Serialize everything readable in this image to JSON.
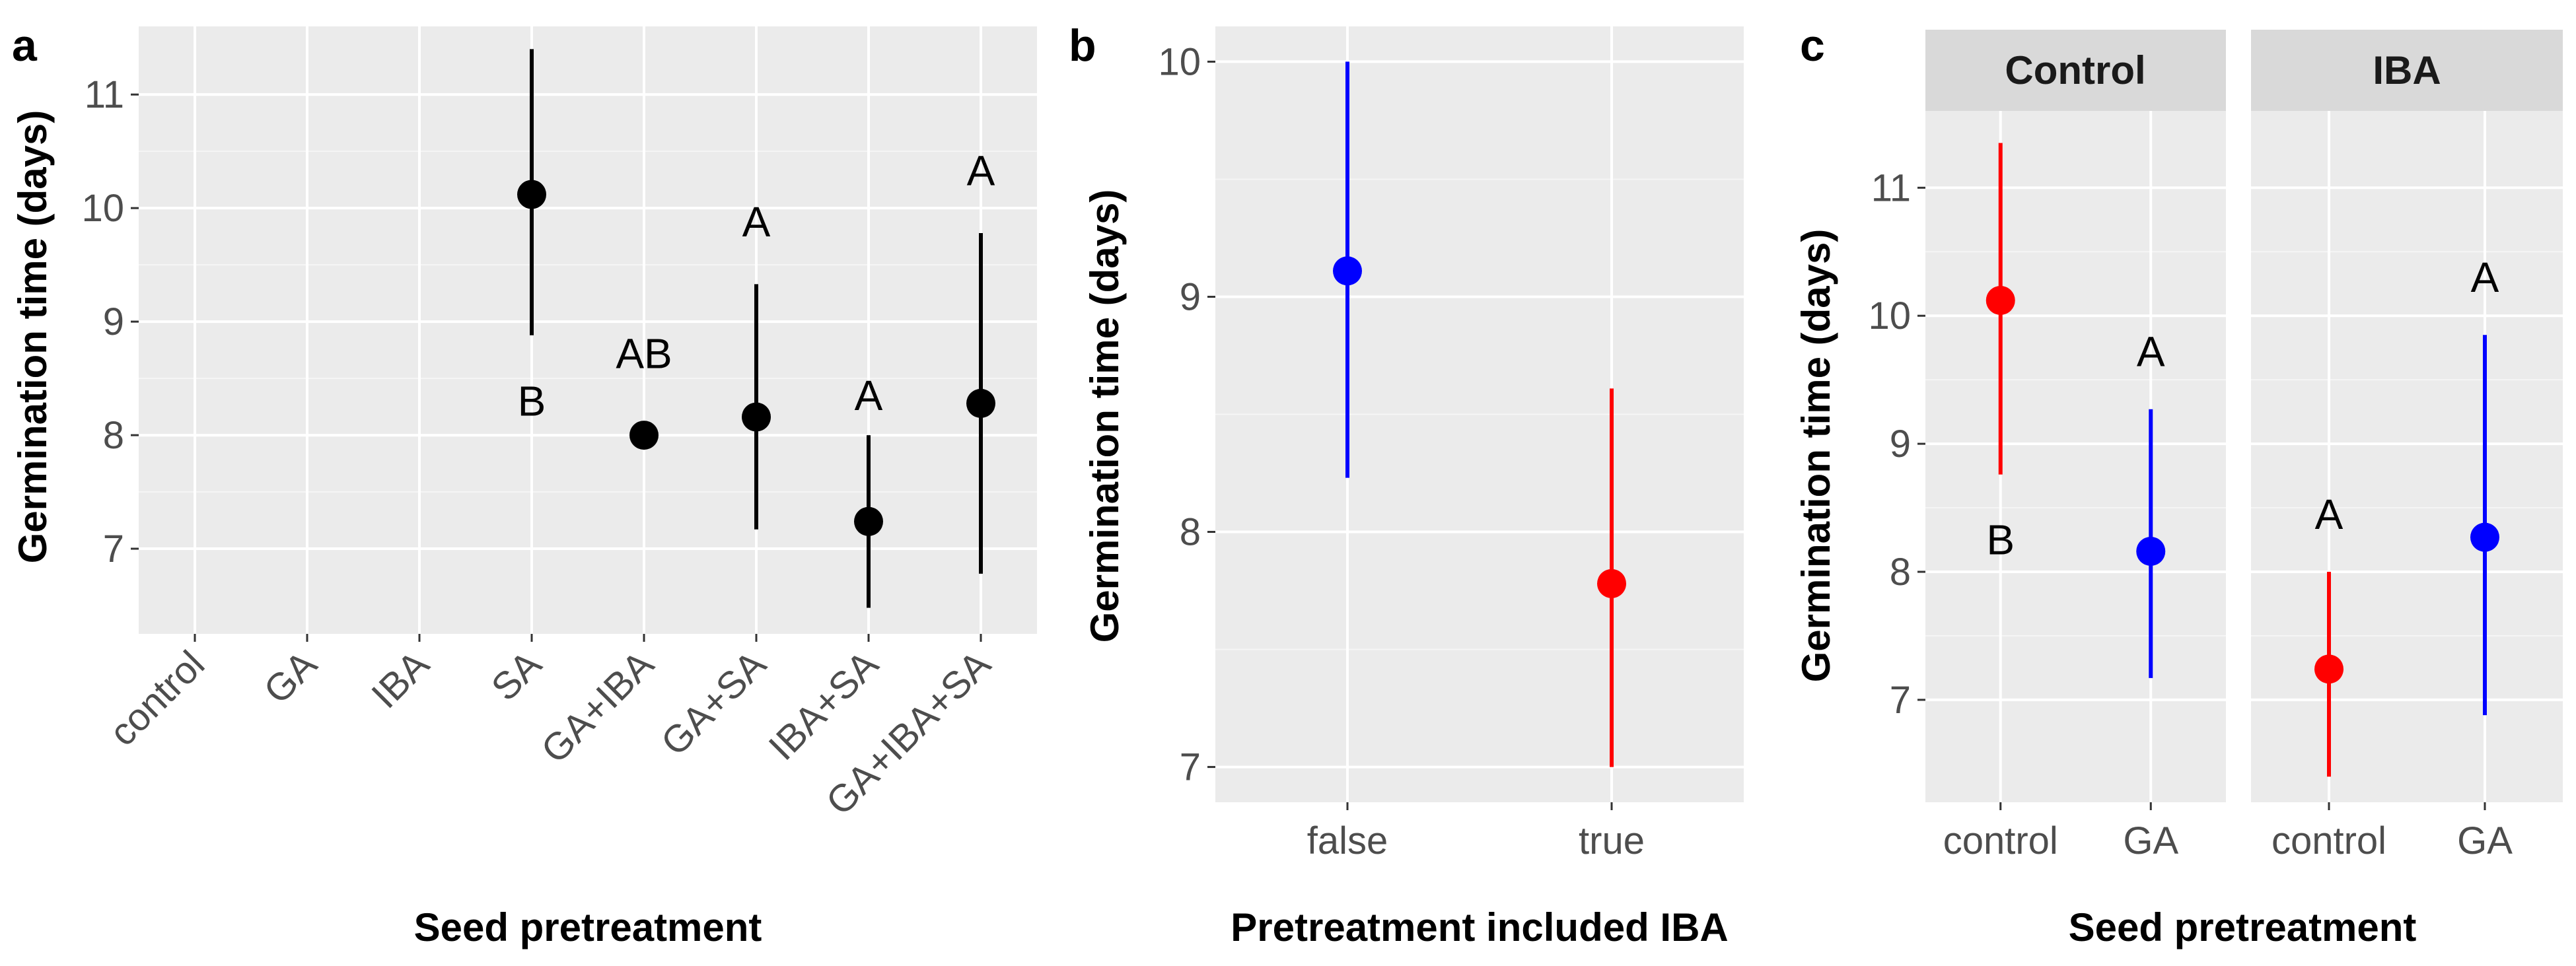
{
  "chart_data": [
    {
      "panel": "a",
      "type": "scatter",
      "subtype": "pointrange",
      "title": "",
      "xlabel": "Seed pretreatment",
      "ylabel": "Germination time (days)",
      "categories": [
        "control",
        "GA",
        "IBA",
        "SA",
        "GA+IBA",
        "GA+SA",
        "IBA+SA",
        "GA+IBA+SA"
      ],
      "ylim": [
        6.25,
        11.6
      ],
      "yticks": [
        7,
        8,
        9,
        10,
        11
      ],
      "grid": true,
      "color": "#000000",
      "points": [
        {
          "x": "SA",
          "y": 10.12,
          "ymin": 8.88,
          "ymax": 11.4,
          "label": "B",
          "label_y": 8.3
        },
        {
          "x": "GA+IBA",
          "y": 8.0,
          "ymin": 8.0,
          "ymax": 8.0,
          "label": "AB",
          "label_y": 8.72
        },
        {
          "x": "GA+SA",
          "y": 8.16,
          "ymin": 7.17,
          "ymax": 9.33,
          "label": "A",
          "label_y": 9.88
        },
        {
          "x": "IBA+SA",
          "y": 7.24,
          "ymin": 6.48,
          "ymax": 8.0,
          "label": "A",
          "label_y": 8.35
        },
        {
          "x": "GA+IBA+SA",
          "y": 8.28,
          "ymin": 6.78,
          "ymax": 9.78,
          "label": "A",
          "label_y": 10.33
        }
      ]
    },
    {
      "panel": "b",
      "type": "scatter",
      "subtype": "pointrange",
      "title": "",
      "xlabel": "Pretreatment included IBA",
      "ylabel": "Germination time (days)",
      "categories": [
        "false",
        "true"
      ],
      "ylim": [
        6.85,
        10.15
      ],
      "yticks": [
        7,
        8,
        9,
        10
      ],
      "grid": true,
      "points": [
        {
          "x": "false",
          "y": 9.11,
          "ymin": 8.23,
          "ymax": 10.0,
          "color": "#0000ff"
        },
        {
          "x": "true",
          "y": 7.78,
          "ymin": 7.0,
          "ymax": 8.61,
          "color": "#ff0000"
        }
      ]
    },
    {
      "panel": "c",
      "type": "scatter",
      "subtype": "pointrange-faceted",
      "title": "",
      "xlabel": "Seed pretreatment",
      "ylabel": "Germination time (days)",
      "categories": [
        "control",
        "GA"
      ],
      "ylim": [
        6.2,
        11.6
      ],
      "yticks": [
        7,
        8,
        9,
        10,
        11
      ],
      "grid": true,
      "facets": [
        {
          "name": "Control",
          "points": [
            {
              "x": "control",
              "y": 10.12,
              "ymin": 8.76,
              "ymax": 11.35,
              "color": "#ff0000",
              "label": "B",
              "label_y": 8.25
            },
            {
              "x": "GA",
              "y": 8.16,
              "ymin": 7.17,
              "ymax": 9.27,
              "color": "#0000ff",
              "label": "A",
              "label_y": 9.72
            }
          ]
        },
        {
          "name": "IBA",
          "points": [
            {
              "x": "control",
              "y": 7.24,
              "ymin": 6.4,
              "ymax": 8.0,
              "color": "#ff0000",
              "label": "A",
              "label_y": 8.45
            },
            {
              "x": "GA",
              "y": 8.27,
              "ymin": 6.88,
              "ymax": 9.85,
              "color": "#0000ff",
              "label": "A",
              "label_y": 10.3
            }
          ]
        }
      ]
    }
  ]
}
